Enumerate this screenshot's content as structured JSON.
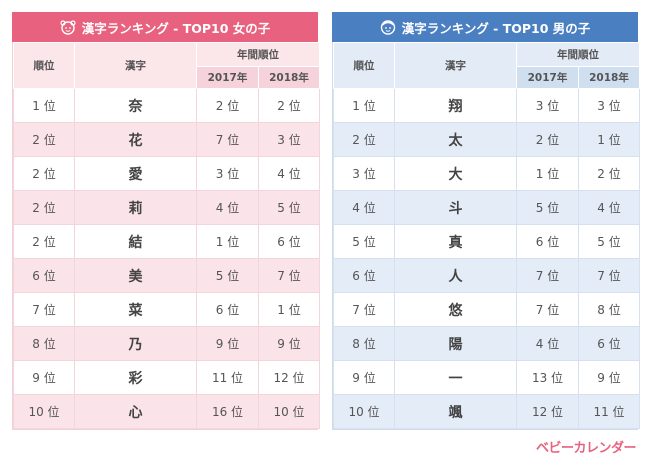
{
  "girls": {
    "title": "漢字ランキング - TOP10 女の子",
    "headers": {
      "rank": "順位",
      "kanji": "漢字",
      "yearly": "年間順位",
      "y2017": "2017年",
      "y2018": "2018年"
    },
    "rows": [
      {
        "rank": "1 位",
        "kanji": "奈",
        "y2017": "2 位",
        "y2018": "2 位"
      },
      {
        "rank": "2 位",
        "kanji": "花",
        "y2017": "7 位",
        "y2018": "3 位"
      },
      {
        "rank": "2 位",
        "kanji": "愛",
        "y2017": "3 位",
        "y2018": "4 位"
      },
      {
        "rank": "2 位",
        "kanji": "莉",
        "y2017": "4 位",
        "y2018": "5 位"
      },
      {
        "rank": "2 位",
        "kanji": "結",
        "y2017": "1 位",
        "y2018": "6 位"
      },
      {
        "rank": "6 位",
        "kanji": "美",
        "y2017": "5 位",
        "y2018": "7 位"
      },
      {
        "rank": "7 位",
        "kanji": "菜",
        "y2017": "6 位",
        "y2018": "1 位"
      },
      {
        "rank": "8 位",
        "kanji": "乃",
        "y2017": "9 位",
        "y2018": "9 位"
      },
      {
        "rank": "9 位",
        "kanji": "彩",
        "y2017": "11 位",
        "y2018": "12 位"
      },
      {
        "rank": "10 位",
        "kanji": "心",
        "y2017": "16 位",
        "y2018": "10 位"
      }
    ]
  },
  "boys": {
    "title": "漢字ランキング - TOP10 男の子",
    "headers": {
      "rank": "順位",
      "kanji": "漢字",
      "yearly": "年間順位",
      "y2017": "2017年",
      "y2018": "2018年"
    },
    "rows": [
      {
        "rank": "1 位",
        "kanji": "翔",
        "y2017": "3 位",
        "y2018": "3 位"
      },
      {
        "rank": "2 位",
        "kanji": "太",
        "y2017": "2 位",
        "y2018": "1 位"
      },
      {
        "rank": "3 位",
        "kanji": "大",
        "y2017": "1 位",
        "y2018": "2 位"
      },
      {
        "rank": "4 位",
        "kanji": "斗",
        "y2017": "5 位",
        "y2018": "4 位"
      },
      {
        "rank": "5 位",
        "kanji": "真",
        "y2017": "6 位",
        "y2018": "5 位"
      },
      {
        "rank": "6 位",
        "kanji": "人",
        "y2017": "7 位",
        "y2018": "7 位"
      },
      {
        "rank": "7 位",
        "kanji": "悠",
        "y2017": "7 位",
        "y2018": "8 位"
      },
      {
        "rank": "8 位",
        "kanji": "陽",
        "y2017": "4 位",
        "y2018": "6 位"
      },
      {
        "rank": "9 位",
        "kanji": "一",
        "y2017": "13 位",
        "y2018": "9 位"
      },
      {
        "rank": "10 位",
        "kanji": "颯",
        "y2017": "12 位",
        "y2018": "11 位"
      }
    ]
  },
  "logo": "ベビーカレンダー",
  "colors": {
    "girls_accent": "#e8627f",
    "boys_accent": "#4a7fc1"
  },
  "icons": {
    "girls_header": "girl-face-icon",
    "boys_header": "boy-face-icon"
  }
}
